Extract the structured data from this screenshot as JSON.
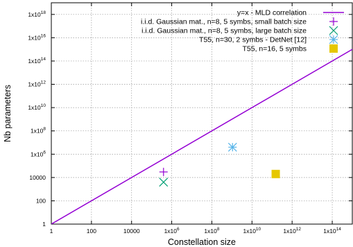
{
  "chart_data": {
    "type": "scatter",
    "xlabel": "Constellation size",
    "ylabel": "Nb parameters",
    "xscale": "log10",
    "yscale": "log10",
    "xlim": [
      1,
      1000000000000000.0
    ],
    "ylim": [
      1,
      1e+19
    ],
    "grid": true,
    "legend_position": "top-right",
    "x_ticks": [
      {
        "value": 1,
        "label": "1"
      },
      {
        "value": 100,
        "label": "100"
      },
      {
        "value": 10000,
        "label": "10000"
      },
      {
        "value": 1000000,
        "label": "1x10^6"
      },
      {
        "value": 100000000,
        "label": "1x10^8"
      },
      {
        "value": 10000000000,
        "label": "1x10^10"
      },
      {
        "value": 1000000000000,
        "label": "1x10^12"
      },
      {
        "value": 100000000000000,
        "label": "1x10^14"
      }
    ],
    "y_ticks": [
      {
        "value": 1,
        "label": "1"
      },
      {
        "value": 100,
        "label": "100"
      },
      {
        "value": 10000,
        "label": "10000"
      },
      {
        "value": 1000000,
        "label": "1x10^6"
      },
      {
        "value": 100000000,
        "label": "1x10^8"
      },
      {
        "value": 10000000000,
        "label": "1x10^10"
      },
      {
        "value": 1000000000000,
        "label": "1x10^12"
      },
      {
        "value": 100000000000000,
        "label": "1x10^14"
      },
      {
        "value": 10000000000000000,
        "label": "1x10^16"
      },
      {
        "value": 1000000000000000000,
        "label": "1x10^18"
      }
    ],
    "series": [
      {
        "name": "y=x - MLD correlation",
        "kind": "line",
        "color": "#9400d3",
        "points": [
          [
            1,
            1
          ],
          [
            1000000000000000.0,
            1000000000000000.0
          ]
        ]
      },
      {
        "name": "i.i.d. Gaussian mat., n=8, 5 symbs, small batch size",
        "kind": "marker",
        "marker": "plus",
        "color": "#9400d3",
        "points": [
          [
            390625,
            30000
          ]
        ]
      },
      {
        "name": "i.i.d. Gaussian mat., n=8, 5 symbs, large batch size",
        "kind": "marker",
        "marker": "cross",
        "color": "#009e73",
        "points": [
          [
            390625,
            4000
          ]
        ]
      },
      {
        "name": "T55, n=30, 2 symbs - DetNet [12]",
        "kind": "marker",
        "marker": "star",
        "color": "#56b4e9",
        "points": [
          [
            1073741824,
            4000000
          ]
        ]
      },
      {
        "name": "T55, n=16, 5 symbs",
        "kind": "marker",
        "marker": "square",
        "color": "#e6c700",
        "points": [
          [
            152587890625,
            20000
          ]
        ]
      }
    ]
  }
}
